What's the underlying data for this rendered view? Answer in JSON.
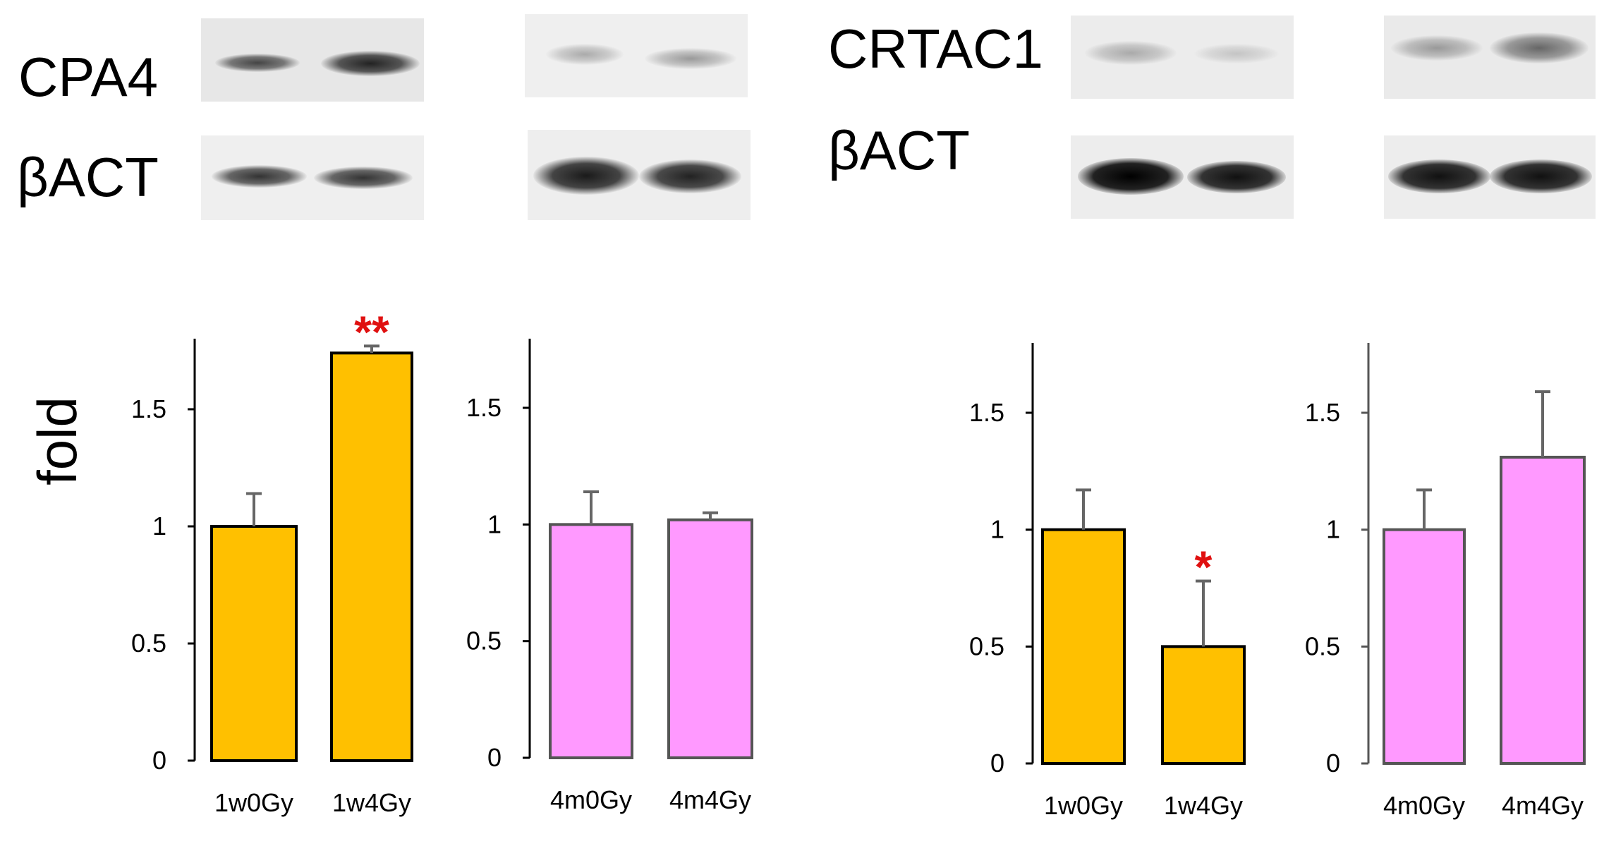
{
  "blots": {
    "left_protein": "CPA4",
    "left_control": "βACT",
    "right_protein": "CRTAC1",
    "right_control": "βACT"
  },
  "y_axis_label": "fold",
  "colors": {
    "orange": "#FFC000",
    "pink": "#FF99FF",
    "significance": "#E01010"
  },
  "chart_data": [
    {
      "type": "bar",
      "name": "CPA4 1w",
      "categories": [
        "1w0Gy",
        "1w4Gy"
      ],
      "values": [
        1.0,
        1.74
      ],
      "errors": [
        0.14,
        0.03
      ],
      "ylim": [
        0,
        1.8
      ],
      "yticks": [
        "0",
        "0.5",
        "1",
        "1.5"
      ],
      "significance": [
        "",
        "**"
      ],
      "color": "orange"
    },
    {
      "type": "bar",
      "name": "CPA4 4m",
      "categories": [
        "4m0Gy",
        "4m4Gy"
      ],
      "values": [
        1.0,
        1.02
      ],
      "errors": [
        0.14,
        0.03
      ],
      "ylim": [
        0,
        1.8
      ],
      "yticks": [
        "0",
        "0.5",
        "1",
        "1.5"
      ],
      "significance": [
        "",
        ""
      ],
      "color": "pink"
    },
    {
      "type": "bar",
      "name": "CRTAC1 1w",
      "categories": [
        "1w0Gy",
        "1w4Gy"
      ],
      "values": [
        1.0,
        0.5
      ],
      "errors": [
        0.17,
        0.28
      ],
      "ylim": [
        0,
        1.8
      ],
      "yticks": [
        "0",
        "0.5",
        "1",
        "1.5"
      ],
      "significance": [
        "",
        "*"
      ],
      "color": "orange"
    },
    {
      "type": "bar",
      "name": "CRTAC1 4m",
      "categories": [
        "4m0Gy",
        "4m4Gy"
      ],
      "values": [
        1.0,
        1.31
      ],
      "errors": [
        0.17,
        0.28
      ],
      "ylim": [
        0,
        1.8
      ],
      "yticks": [
        "0",
        "0.5",
        "1",
        "1.5"
      ],
      "significance": [
        "",
        ""
      ],
      "color": "pink"
    }
  ]
}
